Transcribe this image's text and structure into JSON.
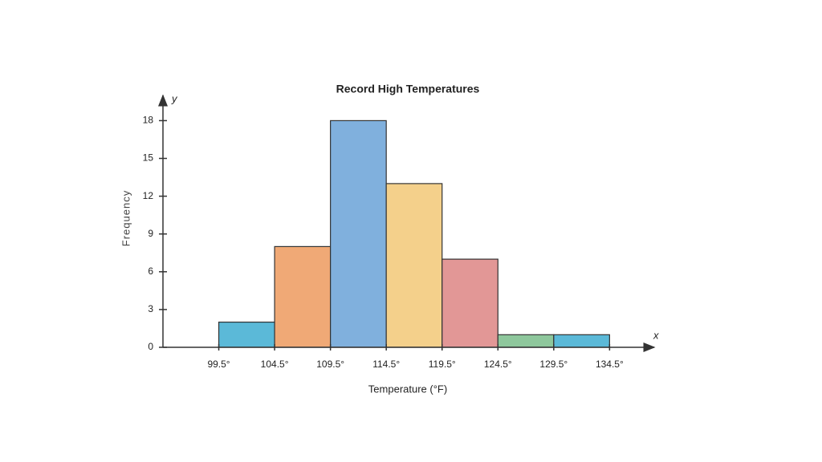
{
  "chart_data": {
    "type": "histogram",
    "title": "Record High Temperatures",
    "xlabel": "Temperature (°F)",
    "ylabel": "Frequency",
    "x_axis_name": "x",
    "y_axis_name": "y",
    "bins": [
      99.5,
      104.5,
      109.5,
      114.5,
      119.5,
      124.5,
      129.5,
      134.5
    ],
    "values": [
      2,
      8,
      18,
      13,
      7,
      1,
      1
    ],
    "colors": [
      "#5bb9d8",
      "#f0a976",
      "#80b0dd",
      "#f4d08b",
      "#e29796",
      "#8ec79c",
      "#5bb9d8"
    ],
    "xlim": [
      94.5,
      138.5
    ],
    "xticks": [
      {
        "value": 99.5,
        "label": "99.5°"
      },
      {
        "value": 104.5,
        "label": "104.5°"
      },
      {
        "value": 109.5,
        "label": "109.5°"
      },
      {
        "value": 114.5,
        "label": "114.5°"
      },
      {
        "value": 119.5,
        "label": "119.5°"
      },
      {
        "value": 124.5,
        "label": "124.5°"
      },
      {
        "value": 129.5,
        "label": "129.5°"
      },
      {
        "value": 134.5,
        "label": "134.5°"
      }
    ],
    "ylim": [
      0,
      20
    ],
    "yticks": [
      0,
      3,
      6,
      9,
      12,
      15,
      18
    ],
    "grid": false
  }
}
